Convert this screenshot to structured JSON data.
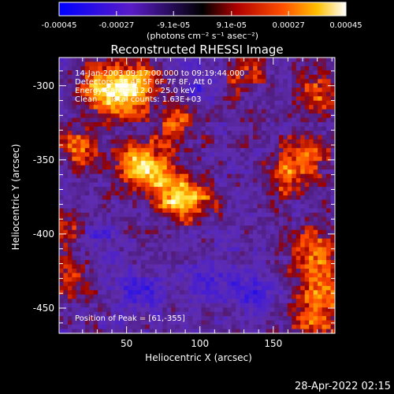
{
  "chart_data": {
    "type": "heatmap",
    "title": "Reconstructed RHESSI Image",
    "xlabel": "Heliocentric X (arcsec)",
    "ylabel": "Heliocentric Y (arcsec)",
    "xlim": [
      4,
      192
    ],
    "ylim": [
      -467,
      -281
    ],
    "x_ticks": [
      50,
      100,
      150
    ],
    "y_ticks": [
      -300,
      -350,
      -400,
      -450
    ],
    "colorbar": {
      "ticks": [
        "-0.00045",
        "-0.00027",
        "-9.1e-05",
        "9.1e-05",
        "0.00027",
        "0.00045"
      ],
      "range": [
        -0.00045,
        0.00045
      ],
      "unit_label": "(photons cm⁻² s⁻¹ asec⁻²)"
    },
    "annotations": [
      "14-Jan-2003 09:17:00.000 to 09:19:44.000",
      "Detectors: 3F 4F 5F 6F 7F 8F, Att 0",
      "Energy Range: 12.0 - 25.0 keV",
      "Clean     Total counts: 1.63E+03"
    ],
    "peak_label": "Position of Peak = [61,-355]",
    "peak": [
      61,
      -355
    ],
    "sources": [
      {
        "x": 61,
        "y": -355,
        "amp": 1.0
      },
      {
        "x": 80,
        "y": -372,
        "amp": 0.72
      },
      {
        "x": 96,
        "y": -378,
        "amp": 0.6
      },
      {
        "x": 45,
        "y": -310,
        "amp": 0.75
      },
      {
        "x": 58,
        "y": -297,
        "amp": 0.62
      },
      {
        "x": 18,
        "y": -342,
        "amp": 0.55
      },
      {
        "x": 30,
        "y": -300,
        "amp": 0.55
      },
      {
        "x": 85,
        "y": -325,
        "amp": 0.5
      },
      {
        "x": 130,
        "y": -293,
        "amp": 0.42
      },
      {
        "x": 180,
        "y": -305,
        "amp": 0.48
      },
      {
        "x": 160,
        "y": -360,
        "amp": 0.55
      },
      {
        "x": 175,
        "y": -345,
        "amp": 0.45
      },
      {
        "x": 176,
        "y": -412,
        "amp": 0.62
      },
      {
        "x": 183,
        "y": -435,
        "amp": 0.62
      },
      {
        "x": 178,
        "y": -458,
        "amp": 0.55
      },
      {
        "x": 8,
        "y": -395,
        "amp": 0.45
      },
      {
        "x": 12,
        "y": -430,
        "amp": 0.4
      }
    ],
    "negatives": [
      {
        "x": 60,
        "y": -440,
        "amp": 0.45
      },
      {
        "x": 110,
        "y": -430,
        "amp": 0.4
      },
      {
        "x": 100,
        "y": -300,
        "amp": 0.35
      },
      {
        "x": 135,
        "y": -440,
        "amp": 0.4
      },
      {
        "x": 30,
        "y": -405,
        "amp": 0.3
      }
    ]
  },
  "footer": {
    "timestamp": "28-Apr-2022 02:15"
  }
}
